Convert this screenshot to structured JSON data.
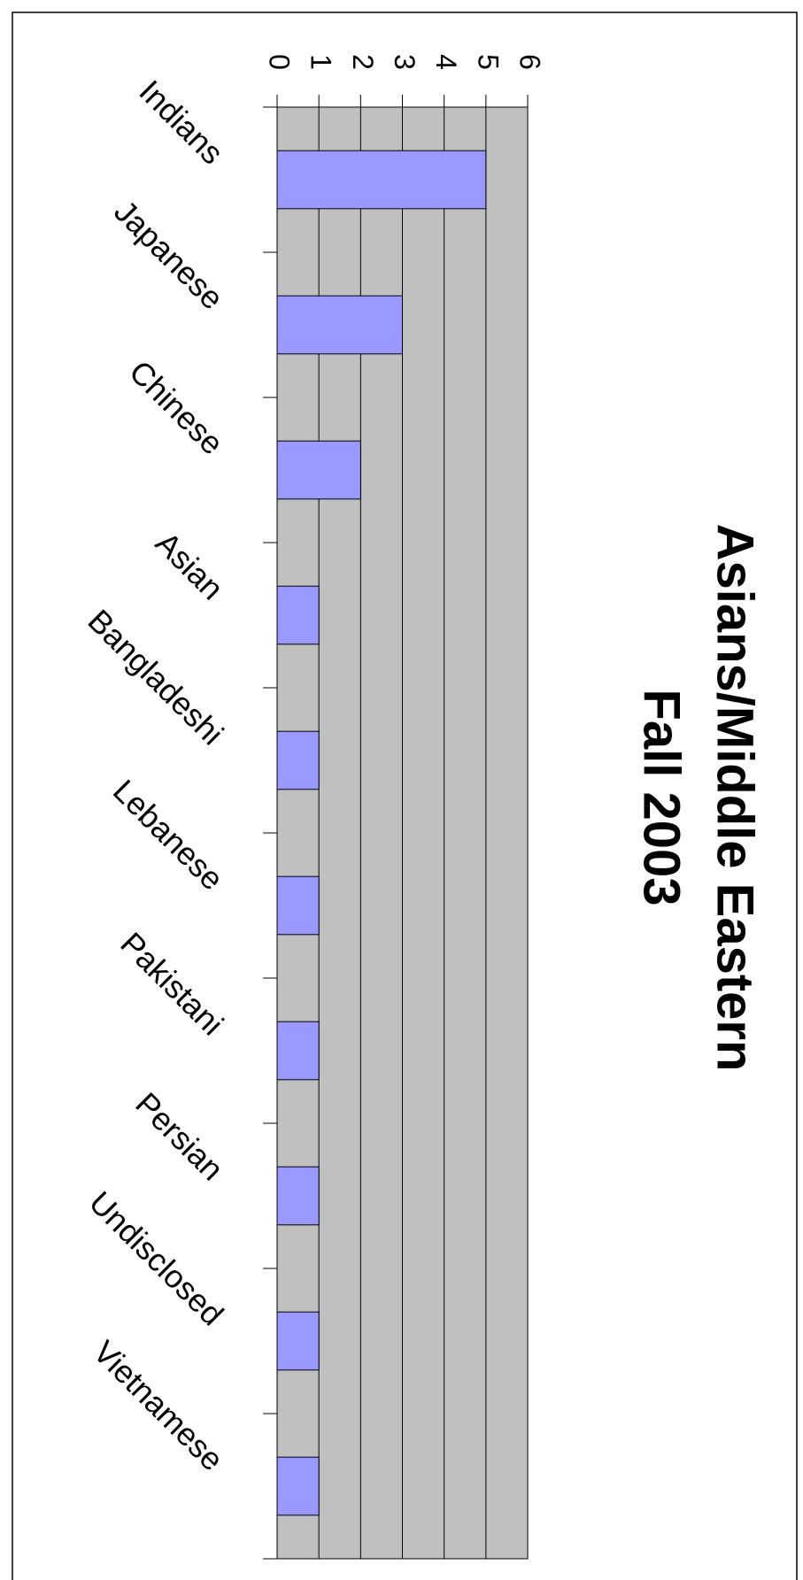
{
  "chart_data": {
    "type": "bar",
    "orientation": "horizontal",
    "title": "Asians/Middle Eastern",
    "subtitle": "Fall 2003",
    "categories": [
      "Indians",
      "Japanese",
      "Chinese",
      "Asian",
      "Bangladeshi",
      "Lebanese",
      "Pakistani",
      "Persian",
      "Undisclosed",
      "Vietnamese"
    ],
    "values": [
      5,
      3,
      2,
      1,
      1,
      1,
      1,
      1,
      1,
      1
    ],
    "color": "#9999ff",
    "plot_background": "#c0c0c0",
    "xlim": [
      0,
      6
    ],
    "xticks": [
      0,
      1,
      2,
      3,
      4,
      5,
      6
    ],
    "grid": true
  }
}
